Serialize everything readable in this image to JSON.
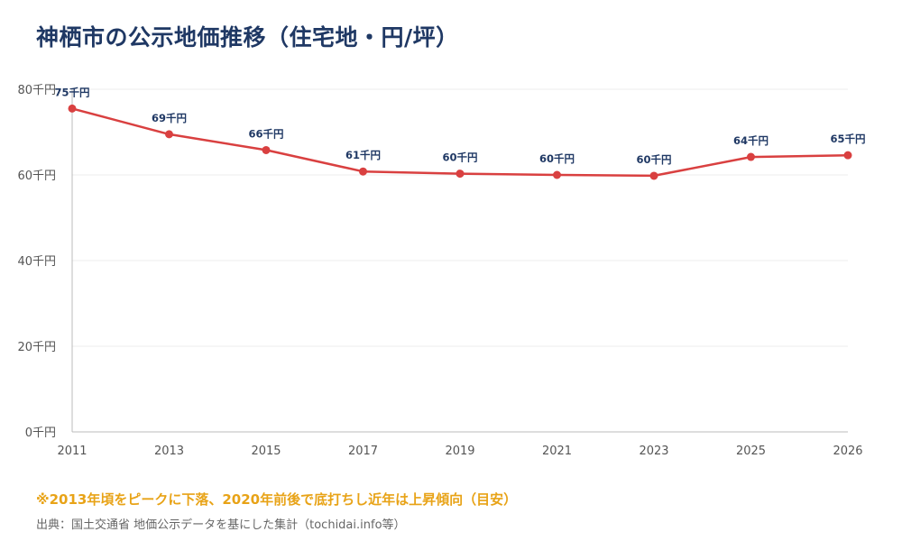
{
  "colors": {
    "title": "#1f3864",
    "line": "#d94040",
    "data_label": "#1f3864",
    "note": "#e8a317",
    "grid": "#ececec",
    "axis": "#bbbbbb",
    "tick_text": "#555555",
    "source_text": "#666666"
  },
  "chart_data": {
    "type": "line",
    "title": "神栖市の公示地価推移（住宅地・円/坪）",
    "x": [
      "2011",
      "2013",
      "2015",
      "2017",
      "2019",
      "2021",
      "2023",
      "2025",
      "2026"
    ],
    "series": [
      {
        "values": [
          75.5,
          69.5,
          65.8,
          60.8,
          60.3,
          60.0,
          59.8,
          64.2,
          64.6
        ],
        "labels": [
          "75千円",
          "69千円",
          "66千円",
          "61千円",
          "60千円",
          "60千円",
          "60千円",
          "64千円",
          "65千円"
        ]
      }
    ],
    "ylim": [
      0,
      80
    ],
    "yticks": [
      0,
      20,
      40,
      60,
      80
    ],
    "ytick_labels": [
      "0千円",
      "20千円",
      "40千円",
      "60千円",
      "80千円"
    ],
    "grid": true,
    "note": "※2013年頃をピークに下落、2020年前後で底打ちし近年は上昇傾向（目安）",
    "source": "出典：国土交通省 地価公示データを基にした集計（tochidai.info等）"
  }
}
